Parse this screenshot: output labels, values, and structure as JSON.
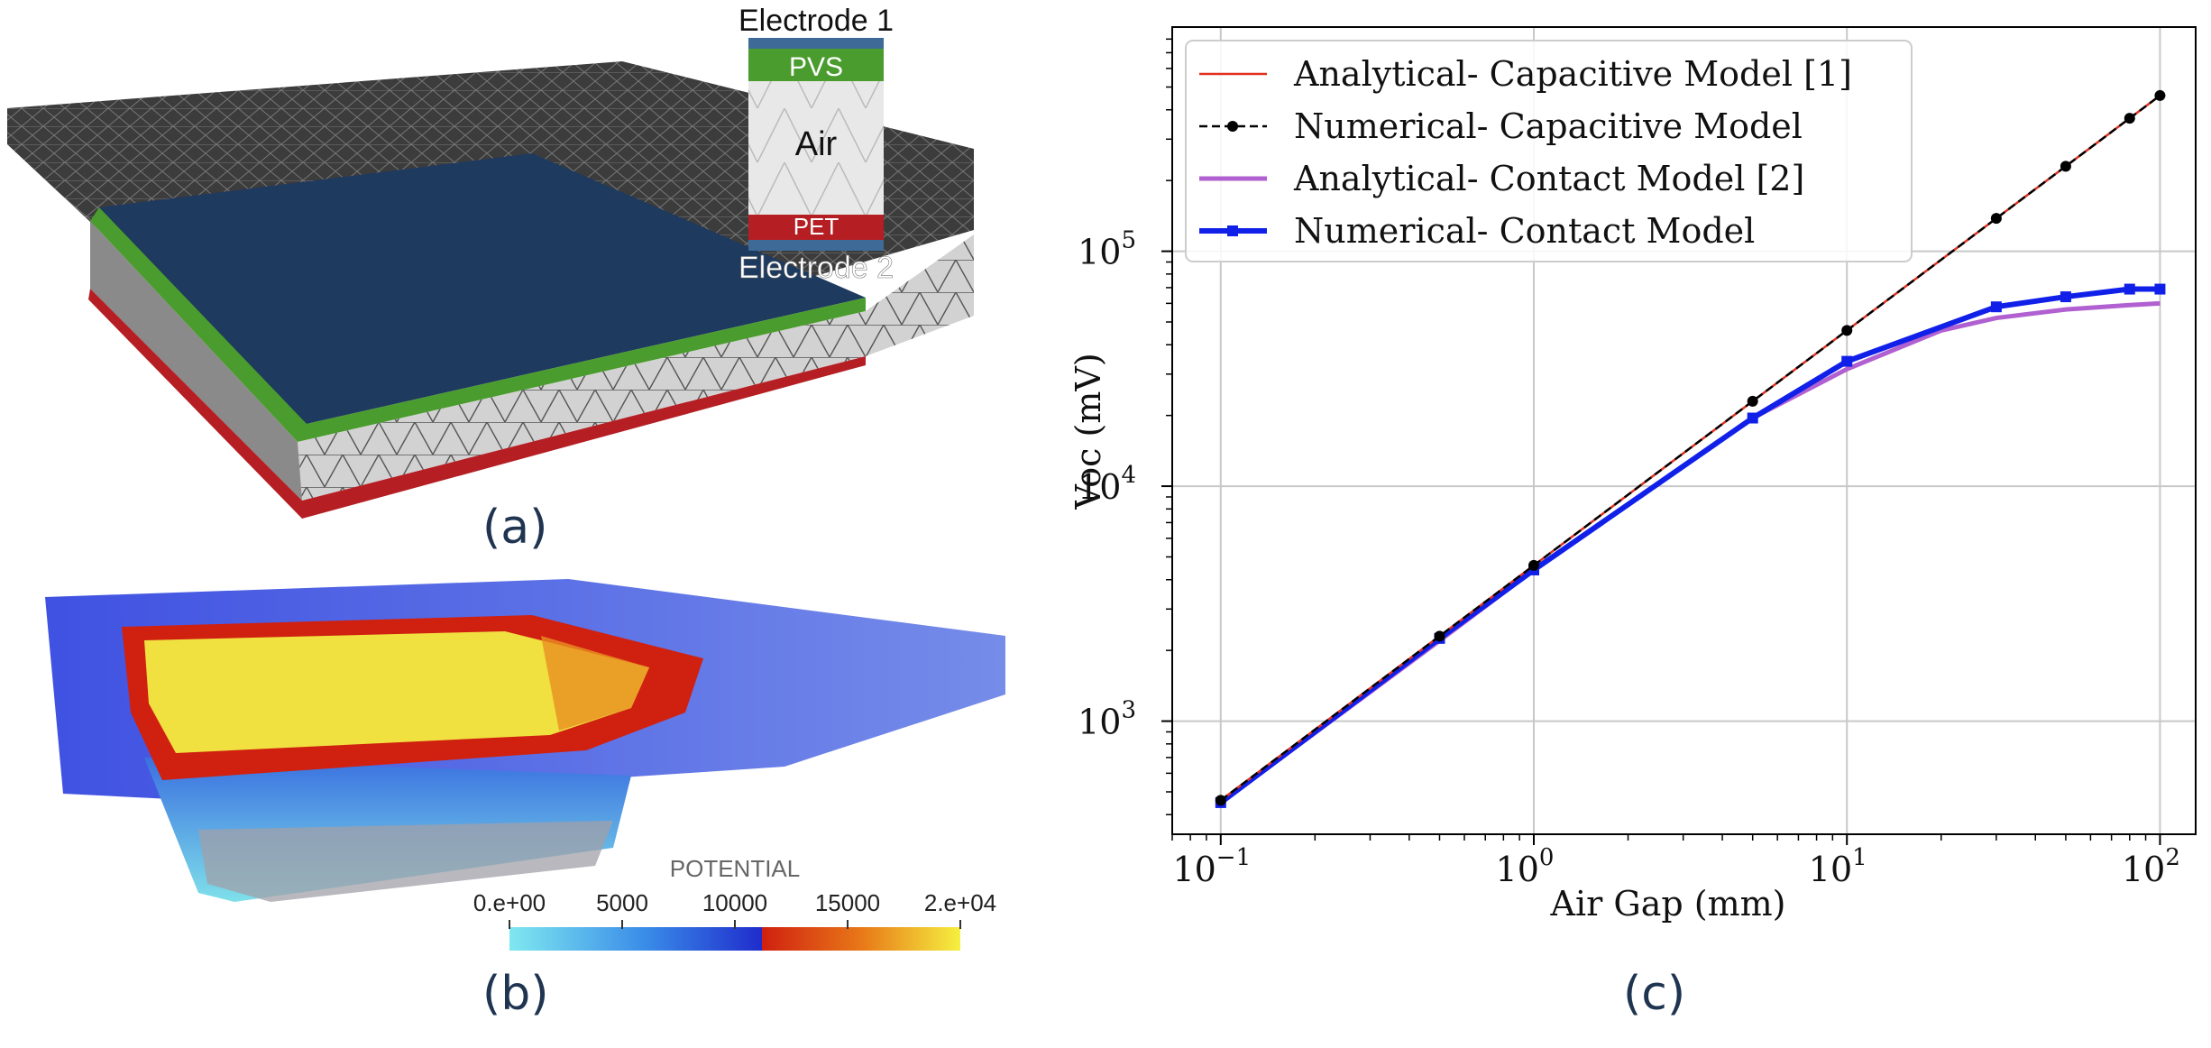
{
  "panel_labels": {
    "a": "(a)",
    "b": "(b)",
    "c": "(c)"
  },
  "panel_a": {
    "electrode1": "Electrode 1",
    "electrode2": "Electrode 2",
    "layer_top": "PVS",
    "layer_mid": "Air",
    "layer_bottom": "PET",
    "colors": {
      "electrode": "#1e3a5f",
      "pvs": "#4a9c2e",
      "pet": "#b51f24",
      "mesh": "#3a3a3a",
      "side": "#cfcfcf"
    }
  },
  "panel_b": {
    "colorbar_title": "POTENTIAL",
    "colorbar_ticks": [
      "0.e+00",
      "5000",
      "10000",
      "15000",
      "2.e+04"
    ],
    "colors": {
      "low": "#7fe8f0",
      "mid": "#1f3cdc",
      "high_start": "#d02010",
      "high_end": "#f5f040"
    }
  },
  "chart_data": {
    "type": "line",
    "xscale": "log",
    "yscale": "log",
    "xlabel": "Air Gap (mm)",
    "ylabel": "Voc (mV)",
    "xlim": [
      0.07,
      130
    ],
    "ylim": [
      330,
      900000
    ],
    "xticks": [
      {
        "base": "10",
        "exp": "−1"
      },
      {
        "base": "10",
        "exp": "0"
      },
      {
        "base": "10",
        "exp": "1"
      },
      {
        "base": "10",
        "exp": "2"
      }
    ],
    "yticks": [
      {
        "base": "10",
        "exp": "3"
      },
      {
        "base": "10",
        "exp": "4"
      },
      {
        "base": "10",
        "exp": "5"
      }
    ],
    "grid": true,
    "legend_position": "top-left",
    "series": [
      {
        "name": "Analytical- Capacitive Model [1]",
        "style": "solid",
        "color": "#e03020",
        "marker": "none",
        "x": [
          0.1,
          0.5,
          1,
          5,
          10,
          30,
          50,
          80,
          100
        ],
        "y": [
          460,
          2300,
          4600,
          23000,
          46000,
          138000,
          230000,
          368000,
          460000
        ]
      },
      {
        "name": "Numerical- Capacitive Model",
        "style": "dashed",
        "color": "#000000",
        "marker": "circle",
        "x": [
          0.1,
          0.5,
          1,
          5,
          10,
          30,
          50,
          80,
          100
        ],
        "y": [
          460,
          2300,
          4600,
          23000,
          46000,
          138000,
          230000,
          368000,
          460000
        ]
      },
      {
        "name": "Analytical- Contact Model [2]",
        "style": "solid",
        "color": "#b060d0",
        "marker": "none",
        "x": [
          0.1,
          0.5,
          1,
          5,
          10,
          20,
          30,
          50,
          80,
          100
        ],
        "y": [
          450,
          2200,
          4400,
          19500,
          31500,
          46000,
          52000,
          56500,
          59000,
          60000
        ]
      },
      {
        "name": "Numerical- Contact Model",
        "style": "solid",
        "color": "#1020e8",
        "marker": "square",
        "x": [
          0.1,
          0.5,
          1,
          5,
          10,
          30,
          50,
          80,
          100
        ],
        "y": [
          450,
          2250,
          4400,
          19500,
          34000,
          58000,
          64000,
          69000,
          69000
        ]
      }
    ]
  }
}
